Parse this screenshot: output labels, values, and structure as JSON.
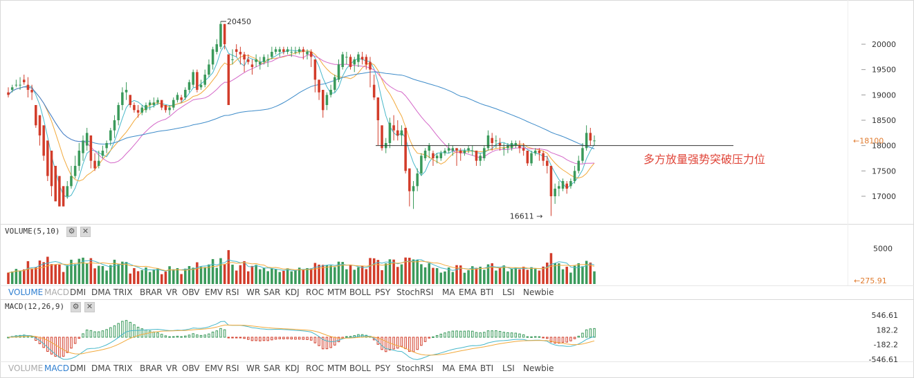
{
  "colors": {
    "up": "#3a9a5b",
    "down": "#d23c2a",
    "ma1": "#46b7c9",
    "ma2": "#f2a93b",
    "ma3": "#d467c8",
    "ma4": "#3d8bc9",
    "vol_ma1": "#46b7c9",
    "vol_ma2": "#f2a93b",
    "macd_dif": "#46b7c9",
    "macd_dea": "#f2a93b",
    "price_line": "#333333",
    "price_tag": "#e07b2e",
    "annotation": "#e0463a",
    "tab_active": "#2f7fd0"
  },
  "main": {
    "y_ticks": [
      "20000",
      "19500",
      "19000",
      "18500",
      "18000",
      "17500",
      "17000"
    ],
    "price_tag": "18100",
    "high_label": "20450",
    "low_label": "16611",
    "annotation": "多方放量强势突破压力位"
  },
  "volume": {
    "label": "VOLUME(5,10)",
    "tick": "5000",
    "current_tag": "275.91"
  },
  "tabs1": {
    "items": [
      "VOLUME",
      "MACD",
      "DMI",
      "DMA",
      "TRIX",
      "BRAR",
      "VR",
      "OBV",
      "EMV",
      "RSI",
      "WR",
      "SAR",
      "KDJ",
      "ROC",
      "MTM",
      "BOLL",
      "PSY",
      "StochRSI",
      "MA",
      "EMA",
      "BTI",
      "LSI",
      "Newbie"
    ],
    "active": "VOLUME",
    "dim": "MACD"
  },
  "macd": {
    "label": "MACD(12,26,9)",
    "ticks": [
      "546.61",
      "182.2",
      "-182.2",
      "-546.61"
    ]
  },
  "tabs2": {
    "items": [
      "VOLUME",
      "MACD",
      "DMI",
      "DMA",
      "TRIX",
      "BRAR",
      "VR",
      "OBV",
      "EMV",
      "RSI",
      "WR",
      "SAR",
      "KDJ",
      "ROC",
      "MTM",
      "BOLL",
      "PSY",
      "StochRSI",
      "MA",
      "EMA",
      "BTI",
      "LSI",
      "Newbie"
    ],
    "active": "MACD",
    "dim": "VOLUME"
  },
  "icons": {
    "settings": "gear-icon",
    "close": "close-icon"
  },
  "chart_data": {
    "type": "candlestick",
    "price_axis": {
      "min": 16611,
      "max": 20450,
      "ticks": [
        17000,
        17500,
        18000,
        18500,
        19000,
        19500,
        20000
      ]
    },
    "resistance_level": 18000,
    "current_price": 18100,
    "high": 20450,
    "low": 16611,
    "volume_axis": {
      "ticks": [
        5000
      ]
    },
    "macd_axis": {
      "ticks": [
        546.61,
        182.2,
        -182.2,
        -546.61
      ]
    },
    "candles": [
      [
        19050,
        19150,
        19000,
        18950
      ],
      [
        19100,
        19200,
        19150,
        19050
      ],
      [
        19200,
        19300,
        19200,
        19150
      ],
      [
        19200,
        19350,
        19200,
        19100
      ],
      [
        19300,
        19400,
        19250,
        19200
      ],
      [
        19200,
        19350,
        19100,
        18950
      ],
      [
        19100,
        19200,
        19050,
        18900
      ],
      [
        18800,
        18600,
        18400,
        18350
      ],
      [
        18600,
        18400,
        18200,
        18000
      ],
      [
        18400,
        18200,
        17800,
        17700
      ],
      [
        18100,
        17900,
        17400,
        17300
      ],
      [
        17900,
        17500,
        17200,
        17000
      ],
      [
        17600,
        17300,
        16900,
        16900
      ],
      [
        17400,
        17100,
        16800,
        16800
      ],
      [
        17200,
        17000,
        16800,
        16800
      ],
      [
        17000,
        17300,
        17200,
        16950
      ],
      [
        17200,
        17600,
        17400,
        17150
      ],
      [
        17400,
        17800,
        17600,
        17350
      ],
      [
        17600,
        18050,
        17900,
        17500
      ],
      [
        17850,
        18200,
        18100,
        17700
      ],
      [
        18000,
        18350,
        18250,
        17900
      ],
      [
        18200,
        18100,
        17700,
        17550
      ],
      [
        17700,
        17850,
        17550,
        17500
      ],
      [
        17600,
        17900,
        17700,
        17550
      ],
      [
        17800,
        18000,
        17900,
        17750
      ],
      [
        17950,
        18100,
        18050,
        17850
      ],
      [
        18100,
        18350,
        18300,
        18000
      ],
      [
        18300,
        18600,
        18500,
        18150
      ],
      [
        18500,
        18850,
        18800,
        18400
      ],
      [
        18800,
        19150,
        19050,
        18700
      ],
      [
        19050,
        19250,
        19100,
        18900
      ],
      [
        19000,
        18850,
        18800,
        18750
      ],
      [
        18800,
        18850,
        18700,
        18650
      ],
      [
        18700,
        18800,
        18650,
        18550
      ],
      [
        18650,
        18800,
        18750,
        18600
      ],
      [
        18700,
        18850,
        18800,
        18650
      ],
      [
        18800,
        18900,
        18850,
        18700
      ],
      [
        18800,
        18950,
        18850,
        18750
      ],
      [
        18850,
        18950,
        18900,
        18800
      ],
      [
        18900,
        18800,
        18750,
        18700
      ],
      [
        18800,
        18750,
        18700,
        18650
      ],
      [
        18700,
        18800,
        18750,
        18600
      ],
      [
        18750,
        18950,
        18900,
        18700
      ],
      [
        18900,
        19050,
        19000,
        18850
      ],
      [
        18950,
        19000,
        18900,
        18850
      ],
      [
        18950,
        19150,
        19100,
        18900
      ],
      [
        19100,
        19300,
        19250,
        19050
      ],
      [
        19200,
        19500,
        19450,
        19150
      ],
      [
        19450,
        19500,
        19100,
        19050
      ],
      [
        19150,
        19300,
        19200,
        19100
      ],
      [
        19200,
        19500,
        19400,
        19150
      ],
      [
        19400,
        19700,
        19600,
        19350
      ],
      [
        19600,
        19950,
        19900,
        19500
      ],
      [
        19850,
        20100,
        20000,
        19800
      ],
      [
        19950,
        20450,
        20400,
        19900
      ],
      [
        20400,
        20400,
        20000,
        19900
      ],
      [
        19800,
        19700,
        18800,
        18800
      ],
      [
        19700,
        19900,
        19700,
        19600
      ],
      [
        19900,
        20000,
        19850,
        19750
      ],
      [
        19850,
        19950,
        19800,
        19600
      ],
      [
        19800,
        19850,
        19700,
        19450
      ],
      [
        19700,
        19800,
        19650,
        19600
      ],
      [
        19600,
        19700,
        19550,
        19400
      ],
      [
        19650,
        19800,
        19700,
        19550
      ],
      [
        19600,
        19750,
        19650,
        19500
      ],
      [
        19650,
        19800,
        19750,
        19600
      ],
      [
        19700,
        19800,
        19700,
        19550
      ],
      [
        19750,
        19950,
        19850,
        19700
      ],
      [
        19850,
        19950,
        19900,
        19800
      ],
      [
        19850,
        19950,
        19900,
        19750
      ],
      [
        19900,
        19950,
        19850,
        19800
      ],
      [
        19850,
        19950,
        19900,
        19800
      ],
      [
        19850,
        19950,
        19850,
        19750
      ],
      [
        19850,
        19950,
        19850,
        19800
      ],
      [
        19850,
        19950,
        19900,
        19800
      ],
      [
        19900,
        19950,
        19850,
        19700
      ],
      [
        19800,
        19900,
        19850,
        19700
      ],
      [
        19850,
        19900,
        19750,
        19550
      ],
      [
        19700,
        19500,
        19300,
        19050
      ],
      [
        19300,
        19200,
        19050,
        18900
      ],
      [
        19100,
        19000,
        18700,
        18550
      ],
      [
        18800,
        19050,
        19000,
        18700
      ],
      [
        19000,
        19200,
        19100,
        18950
      ],
      [
        19100,
        19400,
        19350,
        19050
      ],
      [
        19300,
        19700,
        19600,
        19250
      ],
      [
        19550,
        19850,
        19800,
        19500
      ],
      [
        19750,
        19850,
        19750,
        19600
      ],
      [
        19750,
        19800,
        19550,
        19500
      ],
      [
        19600,
        19750,
        19700,
        19450
      ],
      [
        19650,
        19850,
        19800,
        19550
      ],
      [
        19750,
        19850,
        19700,
        19600
      ],
      [
        19750,
        19800,
        19600,
        19500
      ],
      [
        19650,
        19750,
        19500,
        19150
      ],
      [
        19200,
        19400,
        18950,
        18900
      ],
      [
        18950,
        18600,
        18500,
        18000
      ],
      [
        18400,
        18050,
        17950,
        17900
      ],
      [
        17950,
        18150,
        18050,
        17850
      ],
      [
        18050,
        18550,
        18450,
        17950
      ],
      [
        18400,
        18600,
        18300,
        18100
      ],
      [
        18300,
        18500,
        18200,
        18100
      ],
      [
        18200,
        18400,
        18300,
        18000
      ],
      [
        18350,
        18000,
        17500,
        17450
      ],
      [
        17550,
        17500,
        17100,
        16800
      ],
      [
        17100,
        17300,
        17200,
        16750
      ],
      [
        17200,
        17550,
        17450,
        17100
      ],
      [
        17450,
        17850,
        17800,
        17400
      ],
      [
        17750,
        17950,
        17900,
        17700
      ],
      [
        17900,
        18050,
        18000,
        17750
      ],
      [
        17850,
        17900,
        17750,
        17600
      ],
      [
        17750,
        17850,
        17800,
        17650
      ],
      [
        17750,
        17900,
        17850,
        17700
      ],
      [
        17850,
        17950,
        17900,
        17800
      ],
      [
        17900,
        18050,
        17950,
        17850
      ],
      [
        17900,
        18000,
        17950,
        17800
      ],
      [
        17950,
        17950,
        17900,
        17600
      ],
      [
        17900,
        17950,
        17850,
        17700
      ],
      [
        17850,
        17950,
        17900,
        17800
      ],
      [
        17900,
        18000,
        17950,
        17850
      ],
      [
        17900,
        18000,
        17900,
        17800
      ],
      [
        17900,
        17900,
        17700,
        17600
      ],
      [
        17700,
        17850,
        17800,
        17600
      ],
      [
        17750,
        18000,
        17950,
        17700
      ],
      [
        17950,
        18300,
        18200,
        17900
      ],
      [
        18150,
        18250,
        18050,
        17900
      ],
      [
        18100,
        18200,
        18100,
        17950
      ],
      [
        18050,
        18150,
        18000,
        17900
      ],
      [
        17950,
        18050,
        17950,
        17800
      ],
      [
        17950,
        18050,
        18000,
        17850
      ],
      [
        17950,
        18100,
        18050,
        17900
      ],
      [
        18000,
        18100,
        18050,
        17950
      ],
      [
        18000,
        18100,
        17950,
        17850
      ],
      [
        17950,
        18050,
        17900,
        17800
      ],
      [
        17900,
        17900,
        17650,
        17600
      ],
      [
        17650,
        17900,
        17850,
        17600
      ],
      [
        17850,
        17950,
        17900,
        17800
      ],
      [
        17900,
        17950,
        17850,
        17700
      ],
      [
        17850,
        17900,
        17700,
        17600
      ],
      [
        17700,
        17800,
        17600,
        17450
      ],
      [
        17600,
        17450,
        17000,
        16611
      ],
      [
        17000,
        17250,
        17150,
        16850
      ],
      [
        17150,
        17300,
        17200,
        17000
      ],
      [
        17150,
        17350,
        17300,
        17100
      ],
      [
        17250,
        17300,
        17150,
        17050
      ],
      [
        17200,
        17350,
        17300,
        17150
      ],
      [
        17300,
        17600,
        17500,
        17250
      ],
      [
        17500,
        17800,
        17700,
        17450
      ],
      [
        17700,
        18050,
        17950,
        17650
      ],
      [
        17950,
        18400,
        18250,
        17900
      ],
      [
        18250,
        18350,
        18100,
        18000
      ],
      [
        18100,
        18200,
        18100,
        18000
      ]
    ]
  }
}
